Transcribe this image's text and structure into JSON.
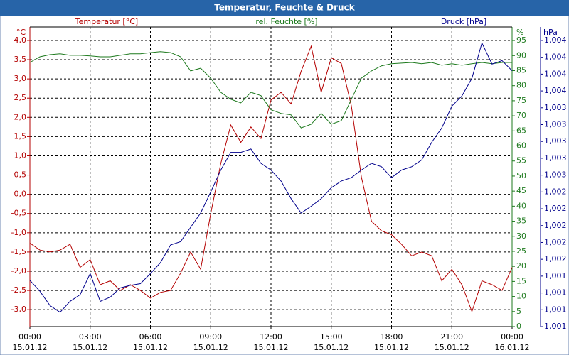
{
  "chart_data": {
    "type": "line",
    "title": "Temperatur, Feuchte & Druck",
    "x": [
      0,
      0.5,
      1,
      1.5,
      2,
      2.5,
      3,
      3.5,
      4,
      4.5,
      5,
      5.5,
      6,
      6.5,
      7,
      7.5,
      8,
      8.5,
      9,
      9.5,
      10,
      10.5,
      11,
      11.5,
      12,
      12.5,
      13,
      13.5,
      14,
      14.5,
      15,
      15.5,
      16,
      16.5,
      17,
      17.5,
      18,
      18.5,
      19,
      19.5,
      20,
      20.5,
      21,
      21.5,
      22,
      22.5,
      23,
      23.5,
      24
    ],
    "xlim": [
      0,
      24
    ],
    "xticks": [
      {
        "value": 0,
        "label": "00:00"
      },
      {
        "value": 3,
        "label": "03:00"
      },
      {
        "value": 6,
        "label": "06:00"
      },
      {
        "value": 9,
        "label": "09:00"
      },
      {
        "value": 12,
        "label": "12:00"
      },
      {
        "value": 15,
        "label": "15:00"
      },
      {
        "value": 18,
        "label": "18:00"
      },
      {
        "value": 21,
        "label": "21:00"
      },
      {
        "value": 24,
        "label": "00:00"
      }
    ],
    "xtick_dates": [
      "15.01.12",
      "15.01.12",
      "15.01.12",
      "15.01.12",
      "15.01.12",
      "15.01.12",
      "15.01.12",
      "15.01.12",
      "16.01.12"
    ],
    "ylabel": "°C",
    "y2label": "%",
    "y3label": "hPa",
    "ylim": [
      -3.44,
      4.35
    ],
    "yticks": [
      {
        "value": 4,
        "label": "4,0"
      },
      {
        "value": 3.5,
        "label": "3,5"
      },
      {
        "value": 3,
        "label": "3,0"
      },
      {
        "value": 2.5,
        "label": "2,5"
      },
      {
        "value": 2,
        "label": "2,0"
      },
      {
        "value": 1.5,
        "label": "1,5"
      },
      {
        "value": 1,
        "label": "1,0"
      },
      {
        "value": 0.5,
        "label": "0,5"
      },
      {
        "value": 0,
        "label": "0,0"
      },
      {
        "value": -0.5,
        "label": "-0,5"
      },
      {
        "value": -1,
        "label": "-1,0"
      },
      {
        "value": -1.5,
        "label": "-1,5"
      },
      {
        "value": -2,
        "label": "-2,0"
      },
      {
        "value": -2.5,
        "label": "-2,5"
      },
      {
        "value": -3,
        "label": "-3,0"
      }
    ],
    "y2lim": [
      0,
      99.5
    ],
    "y2ticks": [
      0,
      5,
      10,
      15,
      20,
      25,
      30,
      35,
      40,
      45,
      50,
      55,
      60,
      65,
      70,
      75,
      80,
      85,
      90,
      95
    ],
    "y3lim": [
      1.0008,
      1.00436
    ],
    "y3ticks": [
      {
        "value": 1.0008,
        "label": "1,001"
      },
      {
        "value": 1.001,
        "label": "1,001"
      },
      {
        "value": 1.0012,
        "label": "1,001"
      },
      {
        "value": 1.0014,
        "label": "1,001"
      },
      {
        "value": 1.0016,
        "label": "1,002"
      },
      {
        "value": 1.0018,
        "label": "1,002"
      },
      {
        "value": 1.002,
        "label": "1,002"
      },
      {
        "value": 1.0022,
        "label": "1,002"
      },
      {
        "value": 1.0024,
        "label": "1,002"
      },
      {
        "value": 1.0026,
        "label": "1,003"
      },
      {
        "value": 1.0028,
        "label": "1,003"
      },
      {
        "value": 1.003,
        "label": "1,003"
      },
      {
        "value": 1.0032,
        "label": "1,003"
      },
      {
        "value": 1.0034,
        "label": "1,003"
      },
      {
        "value": 1.0036,
        "label": "1,004"
      },
      {
        "value": 1.0038,
        "label": "1,004"
      },
      {
        "value": 1.004,
        "label": "1,004"
      },
      {
        "value": 1.0042,
        "label": "1,004"
      }
    ],
    "grid": true,
    "series": [
      {
        "name": "Temperatur [°C]",
        "color": "#b40000",
        "axis": "y",
        "values": [
          -1.27,
          -1.45,
          -1.5,
          -1.45,
          -1.3,
          -1.9,
          -1.7,
          -2.35,
          -2.25,
          -2.5,
          -2.35,
          -2.5,
          -2.7,
          -2.55,
          -2.5,
          -2.05,
          -1.5,
          -1.95,
          -0.5,
          0.8,
          1.8,
          1.35,
          1.75,
          1.45,
          2.45,
          2.65,
          2.35,
          3.2,
          3.85,
          2.65,
          3.55,
          3.4,
          2.3,
          0.45,
          -0.7,
          -0.95,
          -1.05,
          -1.3,
          -1.6,
          -1.5,
          -1.6,
          -2.25,
          -1.95,
          -2.35,
          -3.05,
          -2.25,
          -2.35,
          -2.5,
          -1.9
        ]
      },
      {
        "name": "rel. Feuchte [%]",
        "color": "#1e7a1e",
        "axis": "y2",
        "values": [
          87.7,
          89.6,
          90.3,
          90.6,
          90.1,
          90.1,
          89.9,
          89.6,
          89.6,
          90.1,
          90.6,
          90.6,
          91.0,
          91.3,
          91.0,
          89.6,
          84.9,
          85.8,
          82.5,
          77.8,
          75.5,
          74.3,
          77.8,
          76.7,
          72.0,
          70.8,
          70.3,
          66.0,
          67.2,
          70.8,
          67.2,
          68.4,
          75.5,
          82.5,
          84.9,
          86.6,
          87.3,
          87.5,
          87.7,
          87.3,
          87.7,
          86.8,
          87.3,
          86.8,
          87.3,
          87.7,
          87.3,
          87.7,
          87.7
        ]
      },
      {
        "name": "Druck [hPa]",
        "color": "#00008c",
        "axis": "y3",
        "values": [
          1.00135,
          1.00122,
          1.00105,
          1.00097,
          1.0011,
          1.00118,
          1.00143,
          1.0011,
          1.00115,
          1.00126,
          1.00129,
          1.00131,
          1.00143,
          1.00156,
          1.00177,
          1.00181,
          1.00198,
          1.00215,
          1.0024,
          1.00266,
          1.00287,
          1.00287,
          1.00291,
          1.00274,
          1.00266,
          1.00253,
          1.00232,
          1.00215,
          1.00223,
          1.00232,
          1.00245,
          1.00253,
          1.00257,
          1.00266,
          1.00274,
          1.0027,
          1.00257,
          1.00266,
          1.0027,
          1.00278,
          1.00299,
          1.00316,
          1.00342,
          1.00354,
          1.00375,
          1.00417,
          1.00392,
          1.00396,
          1.00384
        ]
      }
    ]
  }
}
